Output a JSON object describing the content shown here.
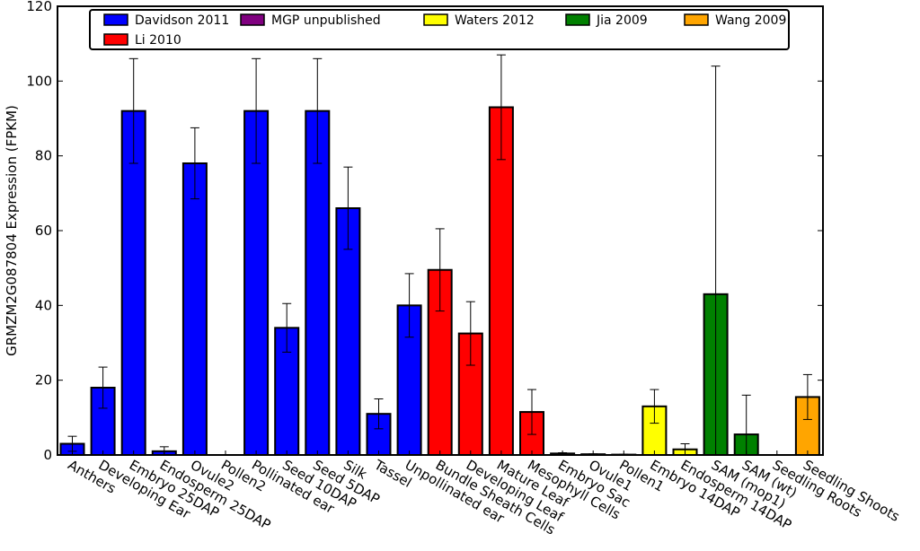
{
  "chart_data": {
    "type": "bar",
    "title": "",
    "xlabel": "",
    "ylabel": "GRMZM2G087804 Expression (FPKM)",
    "ylim": [
      0,
      120
    ],
    "yticks": [
      0,
      20,
      40,
      60,
      80,
      100,
      120
    ],
    "grid": false,
    "legend_position": "top",
    "series": [
      {
        "name": "Davidson 2011",
        "color": "#0000ff"
      },
      {
        "name": "MGP unpublished",
        "color": "#800080"
      },
      {
        "name": "Waters 2012",
        "color": "#ffff00"
      },
      {
        "name": "Jia 2009",
        "color": "#008000"
      },
      {
        "name": "Wang 2009",
        "color": "#ffa500"
      },
      {
        "name": "Li 2010",
        "color": "#ff0000"
      }
    ],
    "categories": [
      "Anthers",
      "Developing Ear",
      "Embryo 25DAP",
      "Endosperm 25DAP",
      "Ovule2",
      "Pollen2",
      "Pollinated ear",
      "Seed 10DAP",
      "Seed 5DAP",
      "Silk",
      "Tassel",
      "Unpollinated ear",
      "Bundle Sheath Cells",
      "Developing Leaf",
      "Mature Leaf",
      "Mesophyll Cells",
      "Embryo Sac",
      "Ovule1",
      "Pollen1",
      "Embryo 14DAP",
      "Endosperm 14DAP",
      "SAM (mop1)",
      "SAM (wt)",
      "Seedling Roots",
      "Seedling Shoots"
    ],
    "values": [
      3,
      18,
      92,
      1,
      78,
      0,
      92,
      34,
      92,
      66,
      11,
      40,
      49.5,
      32.5,
      93,
      11.5,
      0.4,
      0.2,
      0.1,
      13,
      1.5,
      43,
      5.5,
      0,
      15.5
    ],
    "errors": [
      2,
      5.5,
      14,
      1.2,
      9.5,
      0,
      14,
      6.5,
      14,
      11,
      4,
      8.5,
      11,
      8.5,
      14,
      6,
      0.2,
      0.1,
      0.1,
      4.5,
      1.5,
      61,
      10.5,
      0,
      6
    ],
    "bar_series": [
      "Davidson 2011",
      "Davidson 2011",
      "Davidson 2011",
      "Davidson 2011",
      "Davidson 2011",
      "Davidson 2011",
      "Davidson 2011",
      "Davidson 2011",
      "Davidson 2011",
      "Davidson 2011",
      "Davidson 2011",
      "Davidson 2011",
      "Li 2010",
      "Li 2010",
      "Li 2010",
      "Li 2010",
      "Li 2010",
      "Li 2010",
      "Li 2010",
      "Waters 2012",
      "Waters 2012",
      "Jia 2009",
      "Jia 2009",
      "Wang 2009",
      "Wang 2009"
    ]
  }
}
